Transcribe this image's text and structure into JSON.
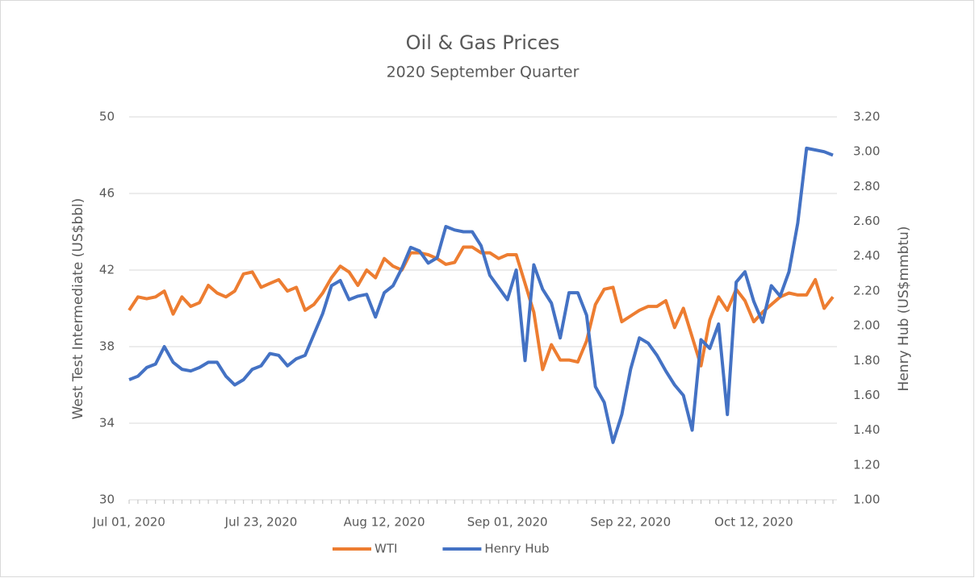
{
  "chart_data": {
    "type": "line",
    "title": "Oil & Gas Prices",
    "subtitle": "2020 September Quarter",
    "y_label": "West Test Intermediate (US$bbl)",
    "y2_label": "Henry Hub (US$mmbtu)",
    "categories": [
      "Jul 01, 2020",
      null,
      null,
      null,
      null,
      null,
      null,
      null,
      null,
      null,
      null,
      null,
      null,
      null,
      null,
      "Jul 23, 2020",
      null,
      null,
      null,
      null,
      null,
      null,
      null,
      null,
      null,
      null,
      null,
      null,
      null,
      "Aug 12, 2020",
      null,
      null,
      null,
      null,
      null,
      null,
      null,
      null,
      null,
      null,
      null,
      null,
      null,
      "Sep 01, 2020",
      null,
      null,
      null,
      null,
      null,
      null,
      null,
      null,
      null,
      null,
      null,
      null,
      null,
      "Sep 22, 2020",
      null,
      null,
      null,
      null,
      null,
      null,
      null,
      null,
      null,
      null,
      null,
      null,
      null,
      "Oct 12, 2020",
      null,
      null,
      null,
      null,
      null,
      null,
      null,
      null,
      null
    ],
    "series": [
      {
        "name": "WTI",
        "color": "#ed7d31",
        "values": [
          39.9,
          40.6,
          40.5,
          40.6,
          40.9,
          39.7,
          40.6,
          40.1,
          40.3,
          41.2,
          40.8,
          40.6,
          40.9,
          41.8,
          41.9,
          41.1,
          41.3,
          41.5,
          40.9,
          41.1,
          39.9,
          40.2,
          40.8,
          41.6,
          42.2,
          41.9,
          41.2,
          42.0,
          41.6,
          42.6,
          42.2,
          42.0,
          42.9,
          42.9,
          42.8,
          42.6,
          42.3,
          42.4,
          43.2,
          43.2,
          42.9,
          42.9,
          42.6,
          42.8,
          42.8,
          41.3,
          39.8,
          36.8,
          38.1,
          37.3,
          37.3,
          37.2,
          38.3,
          40.2,
          41.0,
          41.1,
          39.3,
          39.6,
          39.9,
          40.1,
          40.1,
          40.4,
          39.0,
          40.0,
          38.5,
          37.0,
          39.4,
          40.6,
          39.9,
          41.0,
          40.4,
          39.3,
          39.8,
          40.2,
          40.6,
          40.8,
          40.7,
          40.7,
          41.5,
          40.0,
          40.6
        ]
      },
      {
        "name": "Henry Hub",
        "color": "#4472c4",
        "axis": "y2",
        "values": [
          1.69,
          1.71,
          1.76,
          1.78,
          1.88,
          1.79,
          1.75,
          1.74,
          1.76,
          1.79,
          1.79,
          1.71,
          1.66,
          1.69,
          1.75,
          1.77,
          1.84,
          1.83,
          1.77,
          1.81,
          1.83,
          1.95,
          2.07,
          2.23,
          2.26,
          2.15,
          2.17,
          2.18,
          2.05,
          2.19,
          2.23,
          2.33,
          2.45,
          2.43,
          2.36,
          2.39,
          2.57,
          2.55,
          2.54,
          2.54,
          2.46,
          2.29,
          2.22,
          2.15,
          2.32,
          1.8,
          2.35,
          2.21,
          2.13,
          1.93,
          2.19,
          2.19,
          2.06,
          1.65,
          1.56,
          1.33,
          1.49,
          1.75,
          1.93,
          1.9,
          1.83,
          1.74,
          1.66,
          1.6,
          1.4,
          1.92,
          1.87,
          2.01,
          1.49,
          2.25,
          2.31,
          2.14,
          2.02,
          2.23,
          2.17,
          2.31,
          2.59,
          3.02,
          3.01,
          3.0,
          2.98
        ]
      }
    ],
    "ylim": [
      30,
      50
    ],
    "yticks": [
      30,
      34,
      38,
      42,
      46,
      50
    ],
    "y2lim": [
      1,
      3.2
    ],
    "y2ticks": [
      {
        "value": 1,
        "label": "1.00"
      },
      {
        "value": 1.2,
        "label": "1.20"
      },
      {
        "value": 1.4,
        "label": "1.40"
      },
      {
        "value": 1.6,
        "label": "1.60"
      },
      {
        "value": 1.8,
        "label": "1.80"
      },
      {
        "value": 2,
        "label": "2.00"
      },
      {
        "value": 2.2,
        "label": "2.20"
      },
      {
        "value": 2.4,
        "label": "2.40"
      },
      {
        "value": 2.6,
        "label": "2.60"
      },
      {
        "value": 2.8,
        "label": "2.80"
      },
      {
        "value": 3,
        "label": "3.00"
      },
      {
        "value": 3.2,
        "label": "3.20"
      }
    ],
    "grid": true,
    "legend": "bottom"
  }
}
